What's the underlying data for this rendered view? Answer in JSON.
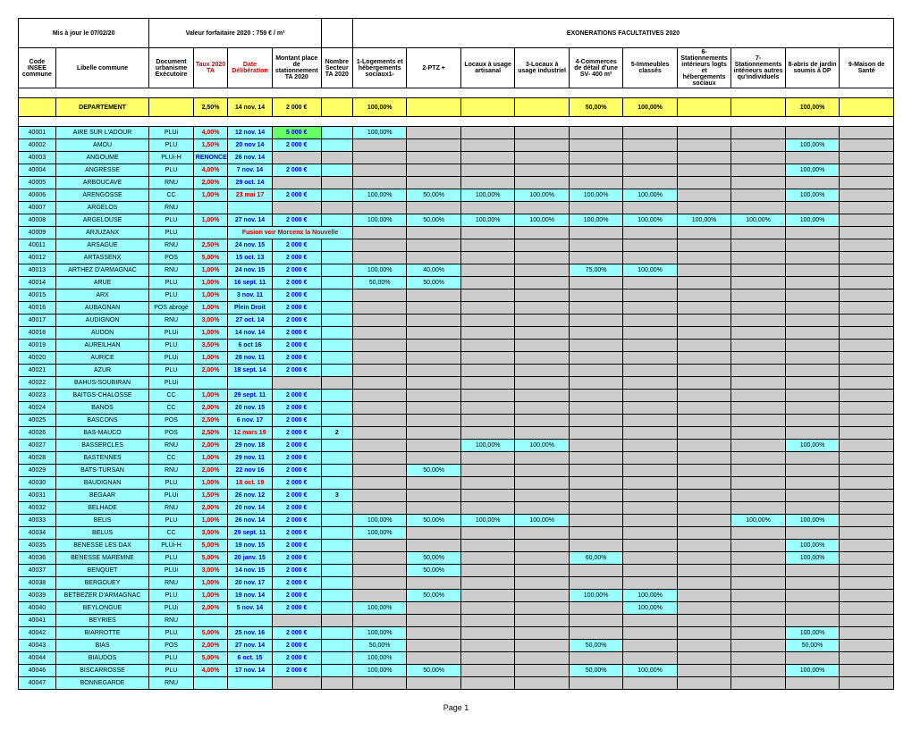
{
  "header": {
    "date_maj": "Mis à jour le 07/02/20",
    "valeur_forfait": "Valeur forfaitaire 2020 : 759 € / m²",
    "exo_title": "EXONERATIONS FACULTATIVES 2020"
  },
  "columns": {
    "code_insee": "Code INSEE commune",
    "libelle": "Libelle commune",
    "doc_urb": "Document urbanisme Exécutoire",
    "taux": "Taux 2020 TA",
    "date_delib": "Date Délibération",
    "montant": "Montant place de stationnement TA 2020",
    "nombre": "Nombre Secteur TA 2020",
    "exo1": "1-Logements et hébergements sociaux1-",
    "exo2": "2-PTZ +",
    "exo3": "Locaux à usage artisanal",
    "exo4": "3-Locaux à usage industriel",
    "exo5": "4-Commerces de détail d'une SV- 400 m²",
    "exo6": "5-Immeubles classés",
    "exo7": "6-Stationnements intérieurs logts et hébergements sociaux",
    "exo8": "7-Stationnements intérieurs autres qu'individuels",
    "exo9": "8-abris de jardin soumis à DP",
    "exo10": "9-Maison de Santé"
  },
  "dept": {
    "label": "DEPARTEMENT",
    "taux": "2,50%",
    "date": "14 nov. 14",
    "montant": "2 000 €",
    "exo1": "100,00%",
    "exo5": "50,00%",
    "exo6": "100,00%",
    "exo9": "100,00%"
  },
  "rows": [
    {
      "code": "40001",
      "lib": "AIRE SUR L'ADOUR",
      "doc": "PLUi",
      "taux": "4,00%",
      "date": "12 nov. 14",
      "mont": "5 000 €",
      "mont_green": true,
      "exo": [
        "100,00%",
        "",
        "",
        "",
        "",
        "",
        "",
        "",
        "",
        ""
      ]
    },
    {
      "code": "40002",
      "lib": "AMOU",
      "doc": "PLU",
      "taux": "1,50%",
      "date": "20 nov 14",
      "mont": "2 000 €",
      "exo": [
        "",
        "",
        "",
        "",
        "",
        "",
        "",
        "",
        "100,00%",
        ""
      ]
    },
    {
      "code": "40003",
      "lib": "ANGOUME",
      "doc": "PLUi-H",
      "taux": "RENONCE",
      "taux_blue": true,
      "date": "26 nov. 14",
      "mont": "",
      "grey": true,
      "exo": [
        "",
        "",
        "",
        "",
        "",
        "",
        "",
        "",
        "",
        ""
      ]
    },
    {
      "code": "40004",
      "lib": "ANGRESSE",
      "doc": "PLU",
      "taux": "4,00%",
      "date": "7 nov. 14",
      "mont": "2 000 €",
      "exo": [
        "",
        "",
        "",
        "",
        "",
        "",
        "",
        "",
        "100,00%",
        ""
      ]
    },
    {
      "code": "40005",
      "lib": "ARBOUCAVE",
      "doc": "RNU",
      "taux": "2,00%",
      "date": "29 oct. 14",
      "mont": "",
      "grey": true,
      "exo": [
        "",
        "",
        "",
        "",
        "",
        "",
        "",
        "",
        "",
        ""
      ]
    },
    {
      "code": "40006",
      "lib": "ARENGOSSE",
      "doc": "CC",
      "taux": "1,00%",
      "date": "23 mai 17",
      "date_red": true,
      "mont": "2 000 €",
      "exo": [
        "100,00%",
        "50,00%",
        "100,00%",
        "100,00%",
        "100,00%",
        "100,00%",
        "",
        "",
        "100,00%",
        ""
      ]
    },
    {
      "code": "40007",
      "lib": "ARGELOS",
      "doc": "RNU",
      "taux": "",
      "date": "",
      "mont": "",
      "grey": true,
      "exo": [
        "",
        "",
        "",
        "",
        "",
        "",
        "",
        "",
        "",
        ""
      ]
    },
    {
      "code": "40008",
      "lib": "ARGELOUSE",
      "doc": "PLU",
      "taux": "1,00%",
      "date": "27 nov. 14",
      "mont": "2 000 €",
      "exo": [
        "100,00%",
        "50,00%",
        "100,00%",
        "100,00%",
        "100,00%",
        "100,00%",
        "100,00%",
        "100,00%",
        "100,00%",
        ""
      ]
    },
    {
      "code": "40009",
      "lib": "ARJUZANX",
      "doc": "PLU",
      "taux": "",
      "date": "Fusion voir Morcenx la Nouvelle",
      "date_red": true,
      "fusion": true,
      "mont": "",
      "grey": true,
      "exo": [
        "",
        "",
        "",
        "",
        "",
        "",
        "",
        "",
        "",
        ""
      ]
    },
    {
      "code": "40011",
      "lib": "ARSAGUE",
      "doc": "RNU",
      "taux": "2,50%",
      "date": "24 nov. 15",
      "mont": "2 000 €",
      "exo": [
        "",
        "",
        "",
        "",
        "",
        "",
        "",
        "",
        "",
        ""
      ]
    },
    {
      "code": "40012",
      "lib": "ARTASSENX",
      "doc": "POS",
      "taux": "5,00%",
      "date": "15 oct. 13",
      "mont": "2 000 €",
      "exo": [
        "",
        "",
        "",
        "",
        "",
        "",
        "",
        "",
        "",
        ""
      ]
    },
    {
      "code": "40013",
      "lib": "ARTHEZ D'ARMAGNAC",
      "doc": "RNU",
      "taux": "1,00%",
      "date": "24 nov. 15",
      "mont": "2 000 €",
      "exo": [
        "100,00%",
        "40,00%",
        "",
        "",
        "75,00%",
        "100,00%",
        "",
        "",
        "",
        ""
      ]
    },
    {
      "code": "40014",
      "lib": "ARUE",
      "doc": "PLU",
      "taux": "1,00%",
      "date": "16 sept. 11",
      "mont": "2 000 €",
      "exo": [
        "50,00%",
        "50,00%",
        "",
        "",
        "",
        "",
        "",
        "",
        "",
        ""
      ]
    },
    {
      "code": "40015",
      "lib": "ARX",
      "doc": "PLU",
      "taux": "1,00%",
      "date": "3 nov. 11",
      "mont": "2 000 €",
      "exo": [
        "",
        "",
        "",
        "",
        "",
        "",
        "",
        "",
        "",
        ""
      ]
    },
    {
      "code": "40016",
      "lib": "AUBAGNAN",
      "doc": "POS abrogé",
      "taux": "1,00%",
      "date": "Plein Droit",
      "date_blue": true,
      "mont": "2 000 €",
      "exo": [
        "",
        "",
        "",
        "",
        "",
        "",
        "",
        "",
        "",
        ""
      ]
    },
    {
      "code": "40017",
      "lib": "AUDIGNON",
      "doc": "RNU",
      "taux": "3,00%",
      "date": "27 oct. 14",
      "mont": "2 000 €",
      "exo": [
        "",
        "",
        "",
        "",
        "",
        "",
        "",
        "",
        "",
        ""
      ]
    },
    {
      "code": "40018",
      "lib": "AUDON",
      "doc": "PLUi",
      "taux": "1,00%",
      "date": "14 nov. 14",
      "mont": "2 000 €",
      "exo": [
        "",
        "",
        "",
        "",
        "",
        "",
        "",
        "",
        "",
        ""
      ]
    },
    {
      "code": "40019",
      "lib": "AUREILHAN",
      "doc": "PLU",
      "taux": "3,50%",
      "date": "6 oct 16",
      "mont": "2 000 €",
      "exo": [
        "",
        "",
        "",
        "",
        "",
        "",
        "",
        "",
        "",
        ""
      ]
    },
    {
      "code": "40020",
      "lib": "AURICE",
      "doc": "PLUi",
      "taux": "1,00%",
      "date": "28 nov. 11",
      "mont": "2 000 €",
      "exo": [
        "",
        "",
        "",
        "",
        "",
        "",
        "",
        "",
        "",
        ""
      ]
    },
    {
      "code": "40021",
      "lib": "AZUR",
      "doc": "PLU",
      "taux": "2,00%",
      "date": "18 sept. 14",
      "mont": "2 000 €",
      "exo": [
        "",
        "",
        "",
        "",
        "",
        "",
        "",
        "",
        "",
        ""
      ]
    },
    {
      "code": "40022",
      "lib": "BAHUS-SOUBIRAN",
      "doc": "PLUi",
      "taux": "",
      "date": "",
      "mont": "",
      "grey": true,
      "exo": [
        "",
        "",
        "",
        "",
        "",
        "",
        "",
        "",
        "",
        ""
      ]
    },
    {
      "code": "40023",
      "lib": "BAITGS-CHALOSSE",
      "doc": "CC",
      "taux": "1,00%",
      "date": "29 sept. 11",
      "mont": "2 000 €",
      "exo": [
        "",
        "",
        "",
        "",
        "",
        "",
        "",
        "",
        "",
        ""
      ]
    },
    {
      "code": "40024",
      "lib": "BANOS",
      "doc": "CC",
      "taux": "2,00%",
      "date": "20 nov. 15",
      "mont": "2 000 €",
      "exo": [
        "",
        "",
        "",
        "",
        "",
        "",
        "",
        "",
        "",
        ""
      ]
    },
    {
      "code": "40025",
      "lib": "BASCONS",
      "doc": "POS",
      "taux": "2,50%",
      "date": "6 nov. 17",
      "mont": "2 000 €",
      "exo": [
        "",
        "",
        "",
        "",
        "",
        "",
        "",
        "",
        "",
        ""
      ]
    },
    {
      "code": "40026",
      "lib": "BAS-MAUCO",
      "doc": "POS",
      "taux": "2,50%",
      "date": "12 mars 19",
      "date_red": true,
      "mont": "2 000 €",
      "nb": "2",
      "exo": [
        "",
        "",
        "",
        "",
        "",
        "",
        "",
        "",
        "",
        ""
      ]
    },
    {
      "code": "40027",
      "lib": "BASSERCLES",
      "doc": "RNU",
      "taux": "2,00%",
      "date": "29 nov. 18",
      "mont": "2 000 €",
      "exo": [
        "",
        "",
        "100,00%",
        "100,00%",
        "",
        "",
        "",
        "",
        "100,00%",
        ""
      ]
    },
    {
      "code": "40028",
      "lib": "BASTENNES",
      "doc": "CC",
      "taux": "1,00%",
      "date": "29 nov. 11",
      "mont": "2 000 €",
      "exo": [
        "",
        "",
        "",
        "",
        "",
        "",
        "",
        "",
        "",
        ""
      ]
    },
    {
      "code": "40029",
      "lib": "BATS-TURSAN",
      "doc": "RNU",
      "taux": "2,00%",
      "date": "22 nov 16",
      "mont": "2 000 €",
      "exo": [
        "",
        "50,00%",
        "",
        "",
        "",
        "",
        "",
        "",
        "",
        ""
      ]
    },
    {
      "code": "40030",
      "lib": "BAUDIGNAN",
      "doc": "PLU",
      "taux": "1,00%",
      "date": "18 oct. 19",
      "date_red": true,
      "mont": "2 000 €",
      "exo": [
        "",
        "",
        "",
        "",
        "",
        "",
        "",
        "",
        "",
        ""
      ]
    },
    {
      "code": "40031",
      "lib": "BEGAAR",
      "doc": "PLUi",
      "taux": "1,50%",
      "date": "26 nov. 12",
      "mont": "2 000 €",
      "nb": "3",
      "exo": [
        "",
        "",
        "",
        "",
        "",
        "",
        "",
        "",
        "",
        ""
      ]
    },
    {
      "code": "40032",
      "lib": "BELHADE",
      "doc": "RNU",
      "taux": "2,00%",
      "date": "20 nov. 14",
      "mont": "2 000 €",
      "exo": [
        "",
        "",
        "",
        "",
        "",
        "",
        "",
        "",
        "",
        ""
      ]
    },
    {
      "code": "40033",
      "lib": "BELIS",
      "doc": "PLU",
      "taux": "1,00%",
      "date": "26 nov. 14",
      "mont": "2 000 €",
      "exo": [
        "100,00%",
        "50,00%",
        "100,00%",
        "100,00%",
        "",
        "",
        "",
        "100,00%",
        "100,00%",
        ""
      ]
    },
    {
      "code": "40034",
      "lib": "BELUS",
      "doc": "CC",
      "taux": "3,00%",
      "date": "29 sept. 11",
      "mont": "2 000 €",
      "exo": [
        "100,00%",
        "",
        "",
        "",
        "",
        "",
        "",
        "",
        "",
        ""
      ]
    },
    {
      "code": "40035",
      "lib": "BENESSE LES DAX",
      "doc": "PLUi-H",
      "taux": "5,00%",
      "date": "19 nov. 15",
      "mont": "2 000 €",
      "exo": [
        "",
        "",
        "",
        "",
        "",
        "",
        "",
        "",
        "100,00%",
        ""
      ]
    },
    {
      "code": "40036",
      "lib": "BENESSE MAREMNE",
      "doc": "PLU",
      "taux": "5,00%",
      "date": "20 janv. 15",
      "mont": "2 000 €",
      "exo": [
        "",
        "50,00%",
        "",
        "",
        "60,00%",
        "",
        "",
        "",
        "100,00%",
        ""
      ]
    },
    {
      "code": "40037",
      "lib": "BENQUET",
      "doc": "PLUi",
      "taux": "3,00%",
      "date": "14 nov. 15",
      "mont": "2 000 €",
      "exo": [
        "",
        "50,00%",
        "",
        "",
        "",
        "",
        "",
        "",
        "",
        ""
      ]
    },
    {
      "code": "40038",
      "lib": "BERGOUEY",
      "doc": "RNU",
      "taux": "1,00%",
      "date": "20 nov. 17",
      "mont": "2 000 €",
      "exo": [
        "",
        "",
        "",
        "",
        "",
        "",
        "",
        "",
        "",
        ""
      ]
    },
    {
      "code": "40039",
      "lib": "BETBEZER D'ARMAGNAC",
      "doc": "PLU",
      "taux": "1,00%",
      "date": "19 nov. 14",
      "mont": "2 000 €",
      "exo": [
        "",
        "50,00%",
        "",
        "",
        "100,00%",
        "100,00%",
        "",
        "",
        "",
        ""
      ]
    },
    {
      "code": "40040",
      "lib": "BEYLONGUE",
      "doc": "PLUi",
      "taux": "2,00%",
      "date": "5 nov. 14",
      "mont": "2 000 €",
      "exo": [
        "100,00%",
        "",
        "",
        "",
        "",
        "100,00%",
        "",
        "",
        "",
        ""
      ]
    },
    {
      "code": "40041",
      "lib": "BEYRIES",
      "doc": "RNU",
      "taux": "",
      "date": "",
      "mont": "",
      "grey": true,
      "exo": [
        "",
        "",
        "",
        "",
        "",
        "",
        "",
        "",
        "",
        ""
      ]
    },
    {
      "code": "40042",
      "lib": "BIARROTTE",
      "doc": "PLU",
      "taux": "5,00%",
      "date": "25 nov. 16",
      "mont": "2 000 €",
      "exo": [
        "100,00%",
        "",
        "",
        "",
        "",
        "",
        "",
        "",
        "100,00%",
        ""
      ]
    },
    {
      "code": "40043",
      "lib": "BIAS",
      "doc": "POS",
      "taux": "2,00%",
      "date": "27 nov. 14",
      "mont": "2 000 €",
      "exo": [
        "50,00%",
        "",
        "",
        "",
        "50,00%",
        "",
        "",
        "",
        "50,00%",
        ""
      ]
    },
    {
      "code": "40044",
      "lib": "BIAUDOS",
      "doc": "PLU",
      "taux": "5,00%",
      "date": "6 oct. 15",
      "mont": "2 000 €",
      "exo": [
        "100,00%",
        "",
        "",
        "",
        "",
        "",
        "",
        "",
        "",
        ""
      ]
    },
    {
      "code": "40046",
      "lib": "BISCARROSSE",
      "doc": "PLU",
      "taux": "4,00%",
      "date": "17 nov. 14",
      "mont": "2 000 €",
      "exo": [
        "100,00%",
        "50,00%",
        "",
        "",
        "50,00%",
        "100,00%",
        "",
        "",
        "100,00%",
        ""
      ]
    },
    {
      "code": "40047",
      "lib": "BONNEGARDE",
      "doc": "RNU",
      "taux": "",
      "date": "",
      "mont": "",
      "grey": true,
      "exo": [
        "",
        "",
        "",
        "",
        "",
        "",
        "",
        "",
        "",
        ""
      ]
    }
  ],
  "footer": "Page 1"
}
